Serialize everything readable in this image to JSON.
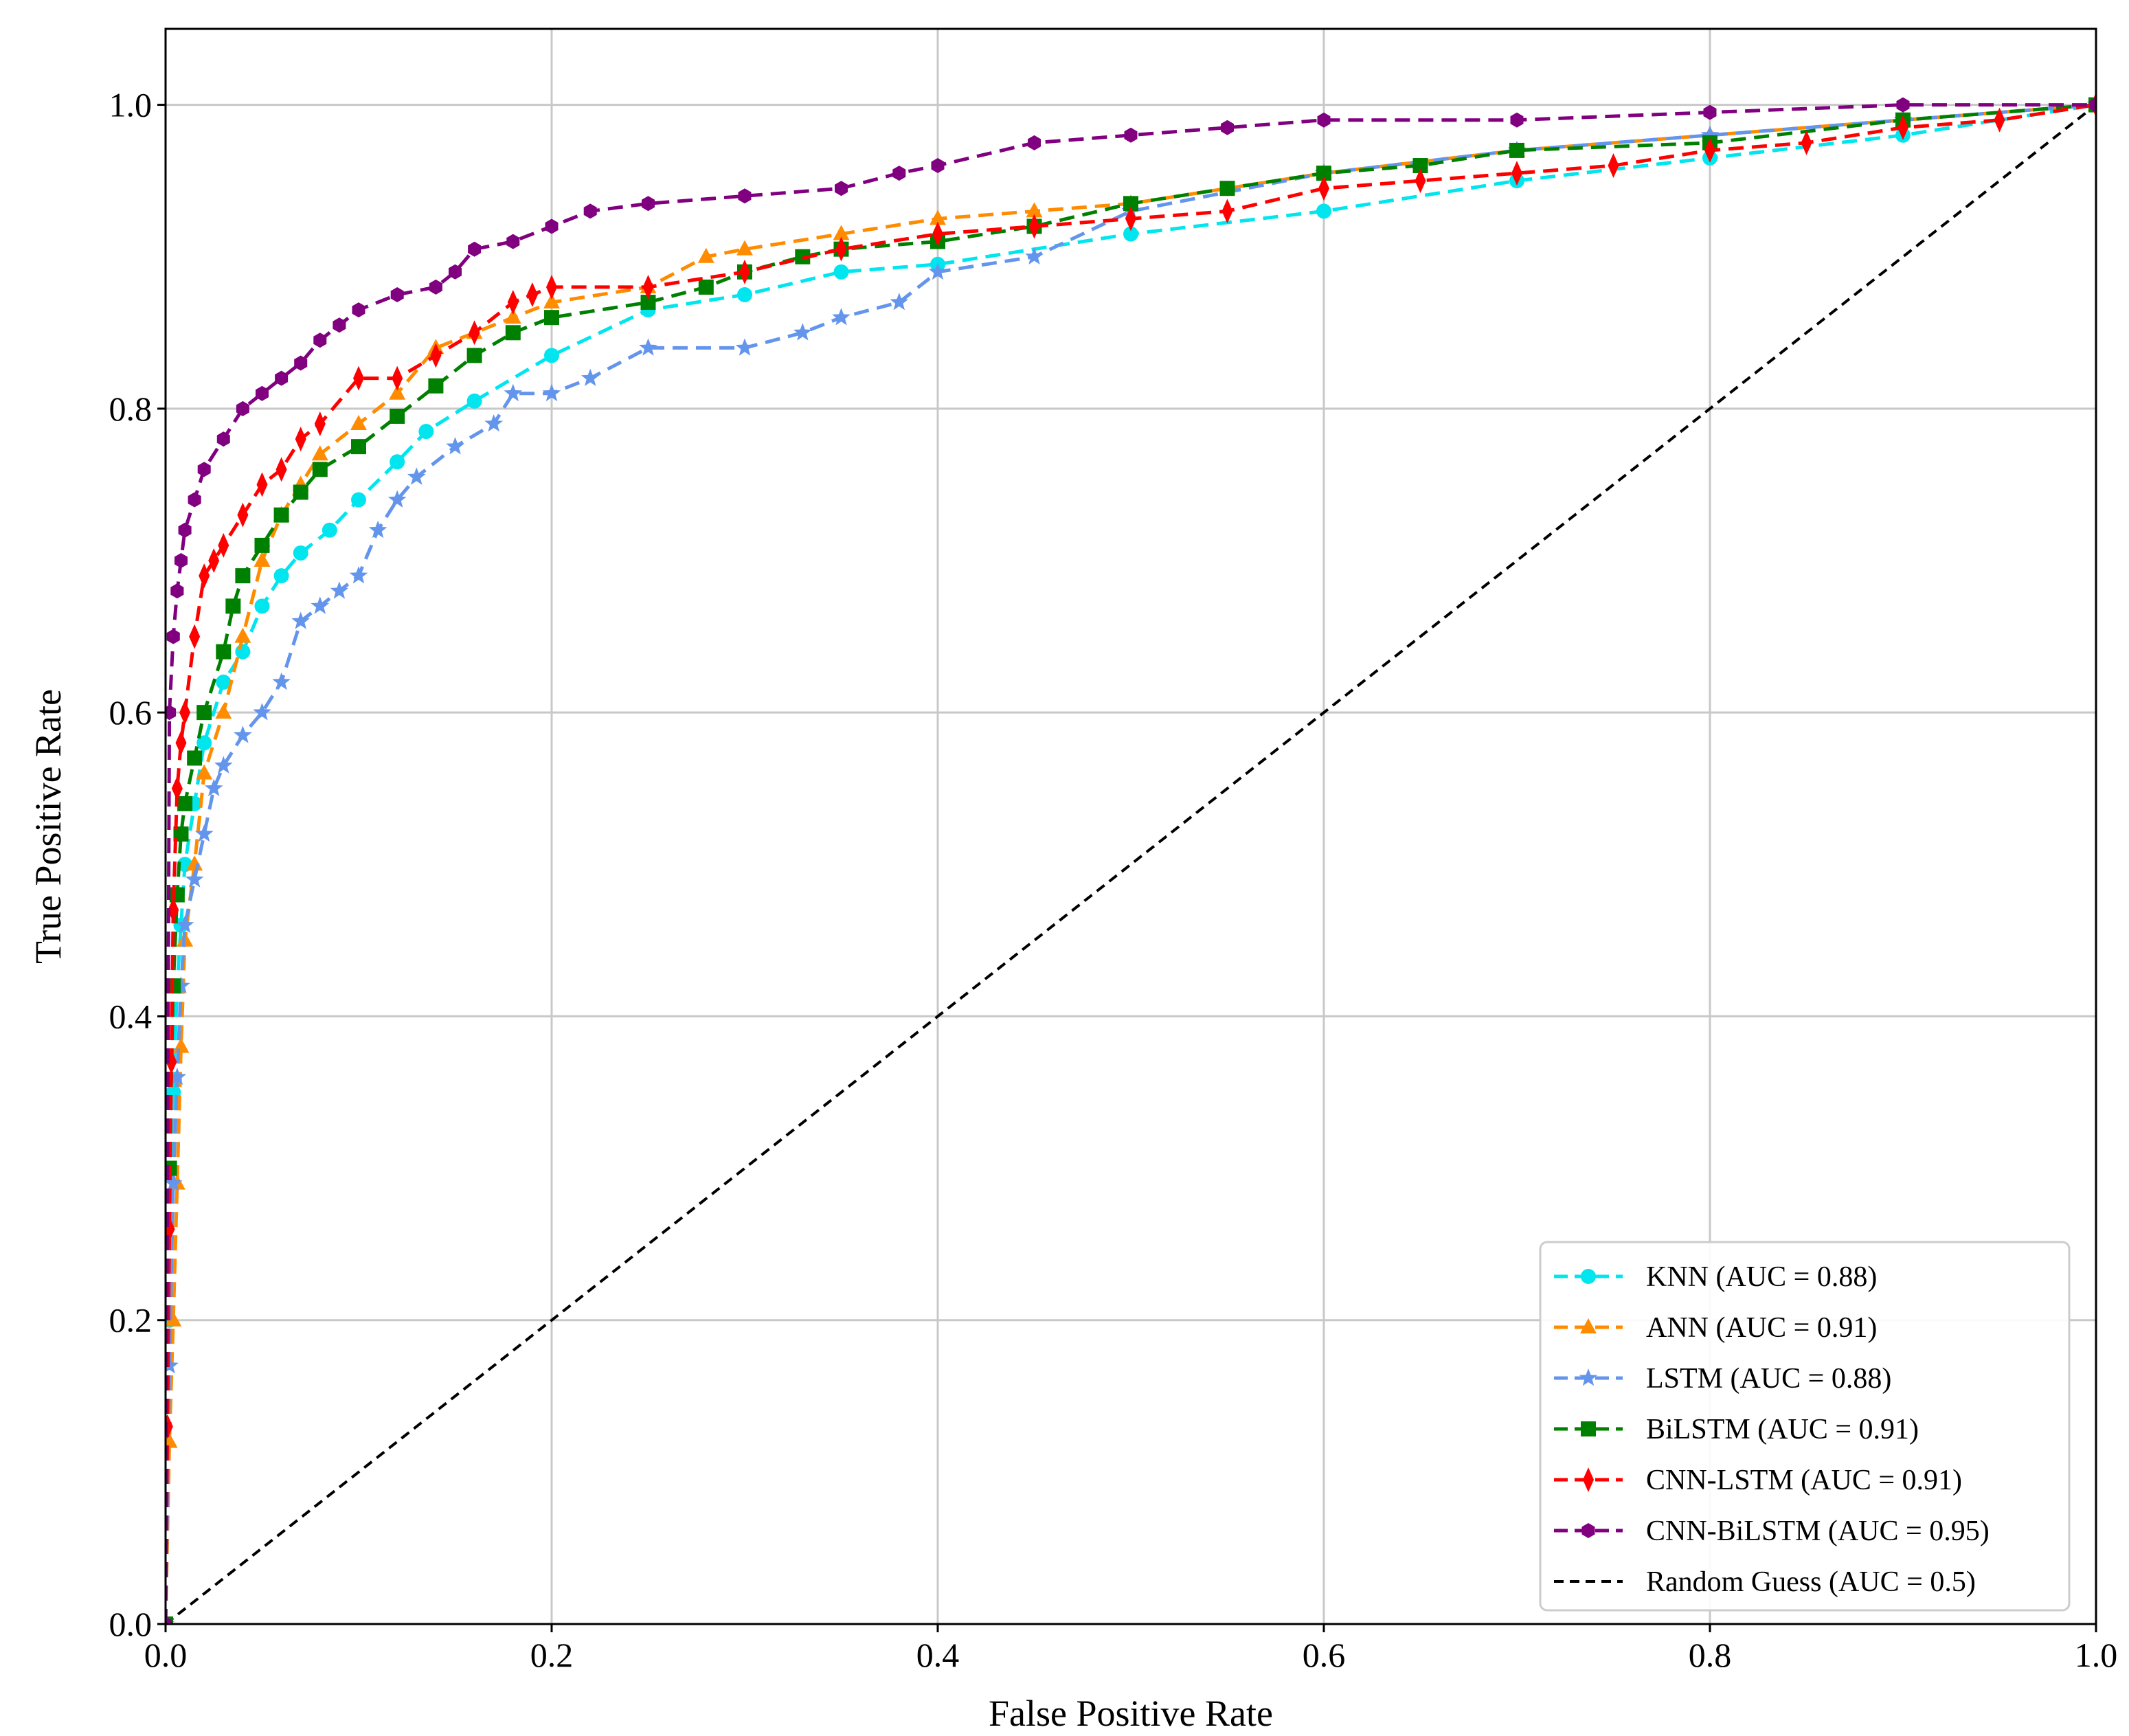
{
  "chart_data": {
    "type": "line",
    "title": "",
    "xlabel": "False Positive Rate",
    "ylabel": "True Positive Rate",
    "xlim": [
      0.0,
      1.0
    ],
    "ylim": [
      0.0,
      1.05
    ],
    "grid": true,
    "legend_position": "lower-right",
    "x_ticks": [
      "0.0",
      "0.2",
      "0.4",
      "0.6",
      "0.8",
      "1.0"
    ],
    "y_ticks": [
      "0.0",
      "0.2",
      "0.4",
      "0.6",
      "0.8",
      "1.0"
    ],
    "series": [
      {
        "name": "KNN (AUC = 0.88)",
        "color": "#00e5ee",
        "marker": "circle",
        "x": [
          0.0,
          0.002,
          0.004,
          0.006,
          0.008,
          0.01,
          0.015,
          0.02,
          0.03,
          0.04,
          0.05,
          0.06,
          0.07,
          0.085,
          0.1,
          0.12,
          0.135,
          0.16,
          0.2,
          0.25,
          0.3,
          0.35,
          0.4,
          0.5,
          0.6,
          0.7,
          0.8,
          0.9,
          1.0
        ],
        "y": [
          0.0,
          0.2,
          0.35,
          0.42,
          0.46,
          0.5,
          0.54,
          0.58,
          0.62,
          0.64,
          0.67,
          0.69,
          0.705,
          0.72,
          0.74,
          0.765,
          0.785,
          0.805,
          0.835,
          0.865,
          0.875,
          0.89,
          0.895,
          0.915,
          0.93,
          0.95,
          0.965,
          0.98,
          1.0
        ]
      },
      {
        "name": "ANN (AUC = 0.91)",
        "color": "#ff8c00",
        "marker": "triangle",
        "x": [
          0.0,
          0.002,
          0.004,
          0.006,
          0.008,
          0.01,
          0.015,
          0.02,
          0.03,
          0.04,
          0.05,
          0.06,
          0.07,
          0.08,
          0.1,
          0.12,
          0.14,
          0.16,
          0.18,
          0.2,
          0.25,
          0.28,
          0.3,
          0.35,
          0.4,
          0.45,
          0.5,
          0.6,
          0.7,
          0.8,
          0.9,
          1.0
        ],
        "y": [
          0.0,
          0.12,
          0.2,
          0.29,
          0.38,
          0.45,
          0.5,
          0.56,
          0.6,
          0.65,
          0.7,
          0.73,
          0.75,
          0.77,
          0.79,
          0.81,
          0.84,
          0.85,
          0.86,
          0.87,
          0.88,
          0.9,
          0.905,
          0.915,
          0.925,
          0.93,
          0.935,
          0.955,
          0.97,
          0.98,
          0.99,
          1.0
        ]
      },
      {
        "name": "LSTM (AUC = 0.88)",
        "color": "#6495ed",
        "marker": "star",
        "x": [
          0.0,
          0.002,
          0.004,
          0.006,
          0.008,
          0.01,
          0.015,
          0.02,
          0.025,
          0.03,
          0.04,
          0.05,
          0.06,
          0.07,
          0.08,
          0.09,
          0.1,
          0.11,
          0.12,
          0.13,
          0.15,
          0.17,
          0.18,
          0.2,
          0.22,
          0.25,
          0.3,
          0.33,
          0.35,
          0.38,
          0.4,
          0.45,
          0.5,
          0.6,
          0.7,
          0.8,
          0.9,
          1.0
        ],
        "y": [
          0.0,
          0.17,
          0.29,
          0.36,
          0.42,
          0.46,
          0.49,
          0.52,
          0.55,
          0.565,
          0.585,
          0.6,
          0.62,
          0.66,
          0.67,
          0.68,
          0.69,
          0.72,
          0.74,
          0.755,
          0.775,
          0.79,
          0.81,
          0.81,
          0.82,
          0.84,
          0.84,
          0.85,
          0.86,
          0.87,
          0.89,
          0.9,
          0.93,
          0.955,
          0.97,
          0.98,
          0.99,
          1.0
        ]
      },
      {
        "name": "BiLSTM (AUC = 0.91)",
        "color": "#008000",
        "marker": "square",
        "x": [
          0.0,
          0.002,
          0.004,
          0.006,
          0.008,
          0.01,
          0.015,
          0.02,
          0.03,
          0.035,
          0.04,
          0.05,
          0.06,
          0.07,
          0.08,
          0.1,
          0.12,
          0.14,
          0.16,
          0.18,
          0.2,
          0.25,
          0.28,
          0.3,
          0.33,
          0.35,
          0.4,
          0.45,
          0.5,
          0.55,
          0.6,
          0.65,
          0.7,
          0.8,
          0.9,
          1.0
        ],
        "y": [
          0.0,
          0.3,
          0.42,
          0.48,
          0.52,
          0.54,
          0.57,
          0.6,
          0.64,
          0.67,
          0.69,
          0.71,
          0.73,
          0.745,
          0.76,
          0.775,
          0.795,
          0.815,
          0.835,
          0.85,
          0.86,
          0.87,
          0.88,
          0.89,
          0.9,
          0.905,
          0.91,
          0.92,
          0.935,
          0.945,
          0.955,
          0.96,
          0.97,
          0.975,
          0.99,
          1.0
        ]
      },
      {
        "name": "CNN-LSTM (AUC = 0.91)",
        "color": "#ff0000",
        "marker": "thin_diamond",
        "x": [
          0.0,
          0.001,
          0.002,
          0.003,
          0.004,
          0.006,
          0.008,
          0.01,
          0.015,
          0.02,
          0.025,
          0.03,
          0.04,
          0.05,
          0.06,
          0.07,
          0.08,
          0.1,
          0.12,
          0.14,
          0.16,
          0.18,
          0.19,
          0.2,
          0.25,
          0.3,
          0.35,
          0.4,
          0.45,
          0.5,
          0.55,
          0.6,
          0.65,
          0.7,
          0.75,
          0.8,
          0.85,
          0.9,
          0.95,
          1.0
        ],
        "y": [
          0.0,
          0.13,
          0.26,
          0.37,
          0.47,
          0.55,
          0.58,
          0.6,
          0.65,
          0.69,
          0.7,
          0.71,
          0.73,
          0.75,
          0.76,
          0.78,
          0.79,
          0.82,
          0.82,
          0.835,
          0.85,
          0.87,
          0.875,
          0.88,
          0.88,
          0.89,
          0.905,
          0.915,
          0.92,
          0.925,
          0.93,
          0.945,
          0.95,
          0.955,
          0.96,
          0.97,
          0.975,
          0.985,
          0.99,
          1.0
        ]
      },
      {
        "name": "CNN-BiLSTM (AUC = 0.95)",
        "color": "#800080",
        "marker": "hexagon",
        "x": [
          0.0,
          0.002,
          0.004,
          0.006,
          0.008,
          0.01,
          0.015,
          0.02,
          0.03,
          0.04,
          0.05,
          0.06,
          0.07,
          0.08,
          0.09,
          0.1,
          0.12,
          0.14,
          0.15,
          0.16,
          0.18,
          0.2,
          0.22,
          0.25,
          0.3,
          0.35,
          0.38,
          0.4,
          0.45,
          0.5,
          0.55,
          0.6,
          0.7,
          0.8,
          0.9,
          1.0
        ],
        "y": [
          0.0,
          0.6,
          0.65,
          0.68,
          0.7,
          0.72,
          0.74,
          0.76,
          0.78,
          0.8,
          0.81,
          0.82,
          0.83,
          0.845,
          0.855,
          0.865,
          0.875,
          0.88,
          0.89,
          0.905,
          0.91,
          0.92,
          0.93,
          0.935,
          0.94,
          0.945,
          0.955,
          0.96,
          0.975,
          0.98,
          0.985,
          0.99,
          0.99,
          0.995,
          1.0,
          1.0
        ]
      },
      {
        "name": "Random Guess (AUC = 0.5)",
        "color": "#000000",
        "marker": "none",
        "x": [
          0.0,
          1.0
        ],
        "y": [
          0.0,
          1.0
        ]
      }
    ]
  }
}
